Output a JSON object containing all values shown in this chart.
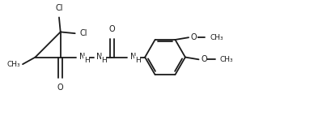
{
  "bg_color": "#ffffff",
  "line_color": "#1a1a1a",
  "line_width": 1.3,
  "font_size": 7.0,
  "fig_width": 3.88,
  "fig_height": 1.48,
  "dpi": 100,
  "xlim": [
    -0.2,
    10.0
  ],
  "ylim": [
    0.0,
    4.2
  ]
}
